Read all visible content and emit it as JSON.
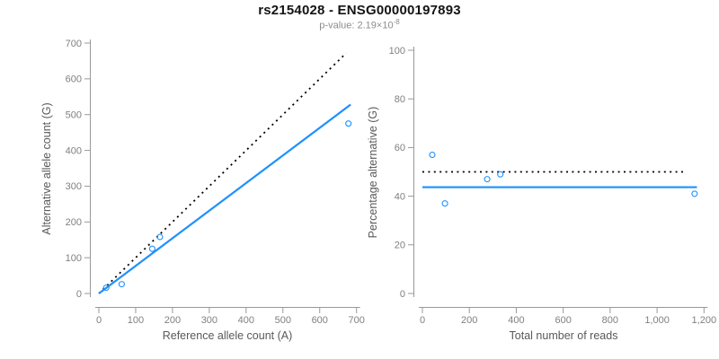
{
  "header": {
    "title": "rs2154028 - ENSG00000197893",
    "subtitle_prefix": "p-value: 2.19×10",
    "subtitle_exponent": "-8"
  },
  "colors": {
    "accent_blue": "#1E90FF",
    "dotted_line": "#000000",
    "axis_line": "#989898",
    "tick_label": "#808080",
    "axis_title": "#595959",
    "title_text": "#141414",
    "subtitle_text": "#8c8c8c"
  },
  "chart_data": [
    {
      "type": "scatter",
      "xlabel": "Reference allele count (A)",
      "ylabel": "Alternative allele count (G)",
      "xlim": [
        0,
        700
      ],
      "ylim": [
        0,
        700
      ],
      "grid": false,
      "legend": null,
      "x_tick_values": [
        0,
        100,
        200,
        300,
        400,
        500,
        600,
        700
      ],
      "x_tick_labels": [
        "0",
        "100",
        "200",
        "300",
        "400",
        "500",
        "600",
        "700"
      ],
      "y_tick_values": [
        0,
        100,
        200,
        300,
        400,
        500,
        600,
        700
      ],
      "y_tick_labels": [
        "0",
        "100",
        "200",
        "300",
        "400",
        "500",
        "600",
        "700"
      ],
      "points": [
        [
          20,
          16
        ],
        [
          62,
          26
        ],
        [
          145,
          125
        ],
        [
          166,
          158
        ],
        [
          678,
          475
        ]
      ],
      "lines": [
        {
          "name": "identity-line",
          "style": "dotted",
          "color": "#000000",
          "points": [
            [
              0,
              0
            ],
            [
              672,
              672
            ]
          ]
        },
        {
          "name": "fit-line",
          "style": "solid",
          "color": "#1E90FF",
          "points": [
            [
              0,
              0
            ],
            [
              684,
              528
            ]
          ]
        }
      ]
    },
    {
      "type": "scatter",
      "xlabel": "Total number of reads",
      "ylabel": "Percentage alternative (G)",
      "xlim": [
        0,
        1200
      ],
      "ylim": [
        0,
        100
      ],
      "grid": false,
      "legend": null,
      "x_tick_values": [
        0,
        200,
        400,
        600,
        800,
        1000,
        1200
      ],
      "x_tick_labels": [
        "0",
        "200",
        "400",
        "600",
        "800",
        "1,000",
        "1,200"
      ],
      "y_tick_values": [
        0,
        20,
        40,
        60,
        80,
        100
      ],
      "y_tick_labels": [
        "0",
        "20",
        "40",
        "60",
        "80",
        "100"
      ],
      "points": [
        [
          42,
          57
        ],
        [
          96,
          37
        ],
        [
          276,
          47
        ],
        [
          332,
          49
        ],
        [
          1160,
          41
        ]
      ],
      "lines": [
        {
          "name": "expected-50pct-line",
          "style": "dotted",
          "color": "#000000",
          "points": [
            [
              0,
              50
            ],
            [
              1125,
              50
            ]
          ]
        },
        {
          "name": "fit-line",
          "style": "solid",
          "color": "#1E90FF",
          "points": [
            [
              0,
              43.7
            ],
            [
              1170,
              43.7
            ]
          ]
        }
      ]
    }
  ]
}
